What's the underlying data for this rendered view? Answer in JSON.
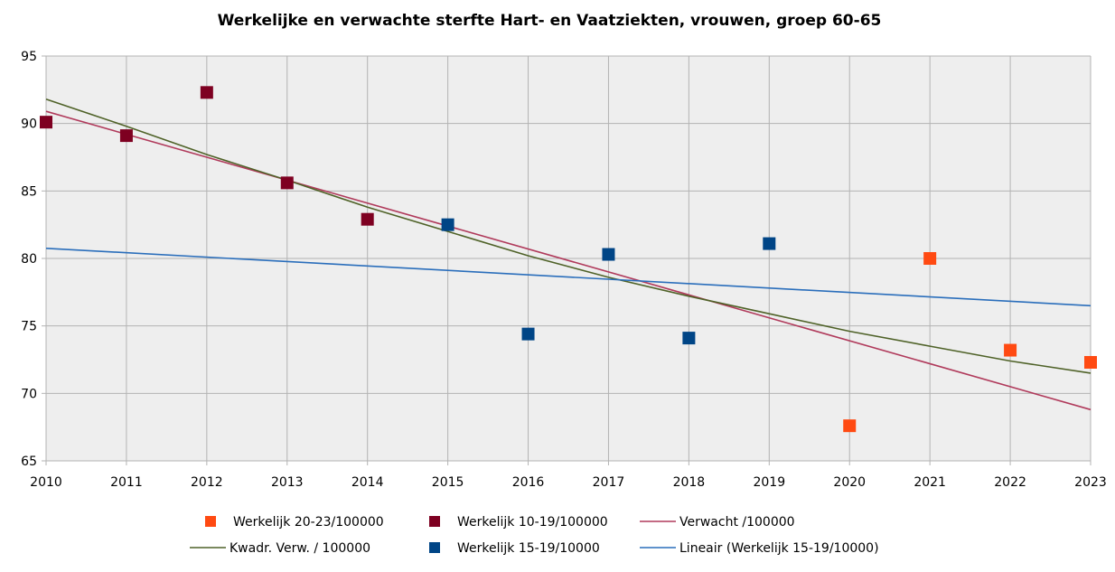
{
  "chart_data": {
    "type": "scatter",
    "title": "Werkelijke en verwachte sterfte Hart- en Vaatziekten, vrouwen, groep 60-65",
    "xlabel": "",
    "ylabel": "",
    "xlim": [
      2010,
      2023
    ],
    "ylim": [
      65,
      95
    ],
    "x_ticks": [
      "2010",
      "2011",
      "2012",
      "2013",
      "2014",
      "2015",
      "2016",
      "2017",
      "2018",
      "2019",
      "2020",
      "2021",
      "2022",
      "2023"
    ],
    "y_ticks": [
      "65",
      "70",
      "75",
      "80",
      "85",
      "90",
      "95"
    ],
    "grid": true,
    "legend_position": "bottom",
    "series": [
      {
        "name": "Werkelijk 20-23/100000",
        "kind": "points",
        "color": "#ff4a12",
        "points": [
          [
            2020,
            67.6
          ],
          [
            2021,
            80.0
          ],
          [
            2022,
            73.2
          ],
          [
            2023,
            72.3
          ]
        ]
      },
      {
        "name": "Werkelijk 10-19/100000",
        "kind": "points",
        "color": "#7e0021",
        "points": [
          [
            2010,
            90.1
          ],
          [
            2011,
            89.1
          ],
          [
            2012,
            92.3
          ],
          [
            2013,
            85.6
          ],
          [
            2014,
            82.9
          ]
        ]
      },
      {
        "name": "Verwacht /100000",
        "kind": "line",
        "color": "#b03a5b",
        "points": [
          [
            2010,
            90.9
          ],
          [
            2023,
            68.8
          ]
        ]
      },
      {
        "name": "Kwadr. Verw. / 100000",
        "kind": "line",
        "color": "#4f6228",
        "points": [
          [
            2010,
            91.8
          ],
          [
            2011,
            89.8
          ],
          [
            2012,
            87.7
          ],
          [
            2013,
            85.8
          ],
          [
            2014,
            83.8
          ],
          [
            2015,
            82.0
          ],
          [
            2016,
            80.2
          ],
          [
            2017,
            78.6
          ],
          [
            2018,
            77.2
          ],
          [
            2019,
            75.9
          ],
          [
            2020,
            74.6
          ],
          [
            2021,
            73.5
          ],
          [
            2022,
            72.4
          ],
          [
            2023,
            71.5
          ]
        ]
      },
      {
        "name": "Werkelijk 15-19/10000",
        "kind": "points",
        "color": "#004586",
        "points": [
          [
            2015,
            82.5
          ],
          [
            2016,
            74.4
          ],
          [
            2017,
            80.3
          ],
          [
            2018,
            74.1
          ],
          [
            2019,
            81.1
          ]
        ]
      },
      {
        "name": "Lineair (Werkelijk 15-19/10000)",
        "kind": "line",
        "color": "#2a6ebb",
        "points": [
          [
            2010,
            80.75
          ],
          [
            2023,
            76.5
          ]
        ]
      }
    ]
  }
}
